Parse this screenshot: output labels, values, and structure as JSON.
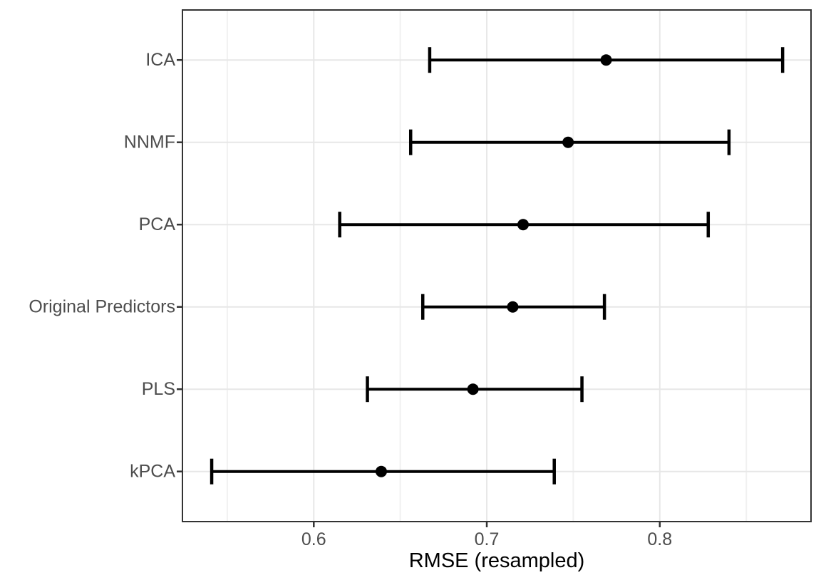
{
  "chart_data": {
    "type": "scatter",
    "subtype": "dot-with-horizontal-error-bars",
    "orientation": "horizontal",
    "title": "",
    "xlabel": "RMSE (resampled)",
    "ylabel": "",
    "categories": [
      "ICA",
      "NNMF",
      "PCA",
      "Original Predictors",
      "PLS",
      "kPCA"
    ],
    "series": [
      {
        "name": "ci_lower",
        "values": [
          0.667,
          0.656,
          0.615,
          0.663,
          0.631,
          0.541
        ]
      },
      {
        "name": "estimate",
        "values": [
          0.769,
          0.747,
          0.721,
          0.715,
          0.692,
          0.639
        ]
      },
      {
        "name": "ci_upper",
        "values": [
          0.871,
          0.84,
          0.828,
          0.768,
          0.755,
          0.739
        ]
      }
    ],
    "x_ticks": [
      {
        "value": 0.6,
        "label": "0.6"
      },
      {
        "value": 0.7,
        "label": "0.7"
      },
      {
        "value": 0.8,
        "label": "0.8"
      }
    ],
    "x_minor_gridlines": [
      0.55,
      0.65,
      0.75,
      0.85
    ],
    "xlim": [
      0.5245,
      0.887
    ],
    "grid": "major-and-minor-vertical, major-horizontal",
    "legend": "none",
    "colors": {
      "data": "#000000",
      "grid_major": "#E7E7E7",
      "grid_minor": "#F1F1F1",
      "panel_border": "#333333",
      "tick_mark": "#333333",
      "axis_text": "#4D4D4D",
      "axis_title": "#000000",
      "background": "#FFFFFF"
    }
  }
}
